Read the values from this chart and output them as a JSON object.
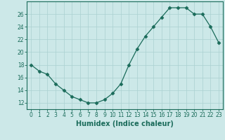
{
  "x": [
    0,
    1,
    2,
    3,
    4,
    5,
    6,
    7,
    8,
    9,
    10,
    11,
    12,
    13,
    14,
    15,
    16,
    17,
    18,
    19,
    20,
    21,
    22,
    23
  ],
  "y": [
    18,
    17,
    16.5,
    15,
    14,
    13,
    12.5,
    12,
    12,
    12.5,
    13.5,
    15,
    18,
    20.5,
    22.5,
    24,
    25.5,
    27,
    27,
    27,
    26,
    26,
    24,
    21.5
  ],
  "line_color": "#1a6b5a",
  "marker": "D",
  "marker_size": 2.5,
  "bg_color": "#cce8e8",
  "grid_color": "#aad0d0",
  "xlabel": "Humidex (Indice chaleur)",
  "xlim": [
    -0.5,
    23.5
  ],
  "ylim": [
    11,
    28
  ],
  "yticks": [
    12,
    14,
    16,
    18,
    20,
    22,
    24,
    26
  ],
  "xticks": [
    0,
    1,
    2,
    3,
    4,
    5,
    6,
    7,
    8,
    9,
    10,
    11,
    12,
    13,
    14,
    15,
    16,
    17,
    18,
    19,
    20,
    21,
    22,
    23
  ],
  "tick_fontsize": 5.5,
  "label_fontsize": 7.0
}
